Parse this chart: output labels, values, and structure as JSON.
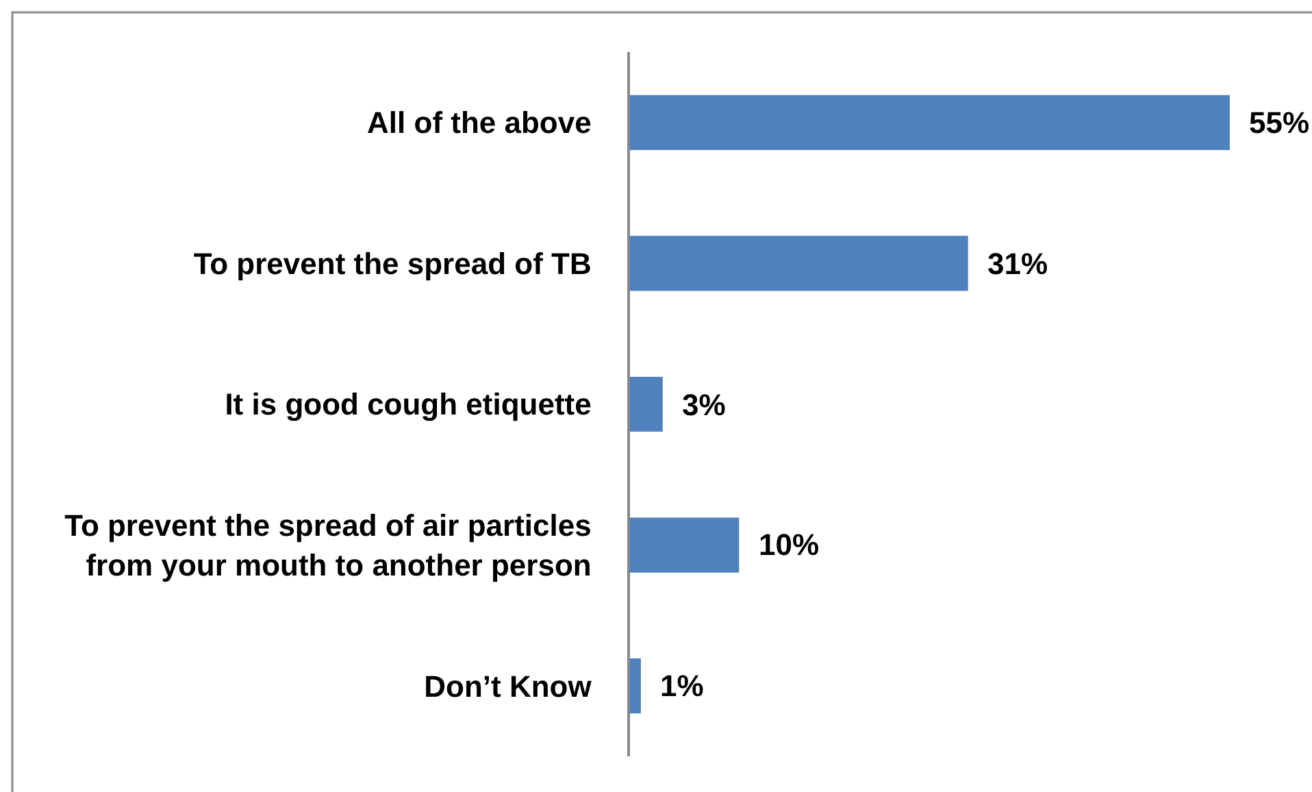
{
  "chart_data": {
    "type": "bar",
    "orientation": "horizontal",
    "categories": [
      "All of the above",
      "To prevent the spread of TB",
      "It is good cough etiquette",
      "To prevent the spread of air particles\nfrom your mouth to another person",
      "Don’t Know"
    ],
    "values": [
      55,
      31,
      3,
      10,
      1
    ],
    "value_labels": [
      "55%",
      "31%",
      "3%",
      "10%",
      "1%"
    ],
    "color": "#4f81bd",
    "legend": false,
    "tick_labels": "y"
  }
}
